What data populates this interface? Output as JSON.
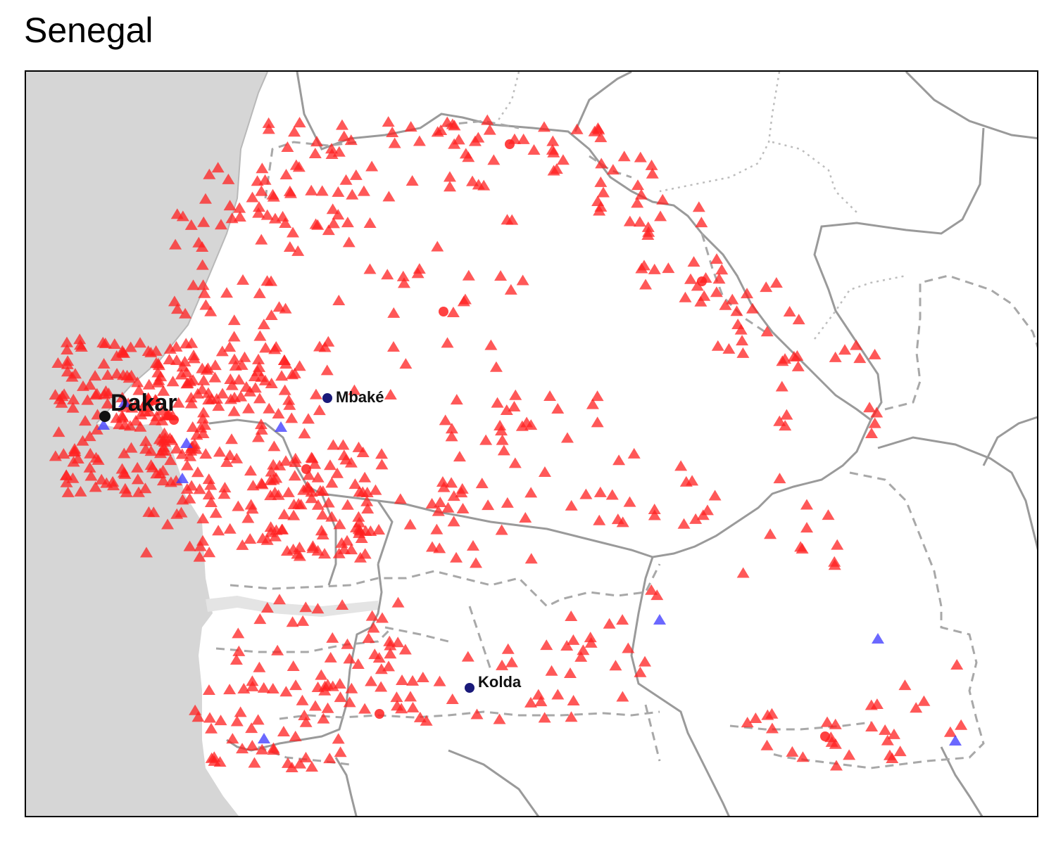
{
  "title": "Senegal",
  "colors": {
    "sea": "#d6d6d6",
    "land": "#ffffff",
    "border": "#9a9a9a",
    "internal_border": "#a8a8a8",
    "red_marker": "#ff2020",
    "blue_marker": "#3a35ff"
  },
  "marker_shapes": [
    "triangle",
    "circle"
  ],
  "cities": [
    {
      "name": "Dakar"
    },
    {
      "name": "Mbaké"
    },
    {
      "name": "Kolda"
    }
  ]
}
